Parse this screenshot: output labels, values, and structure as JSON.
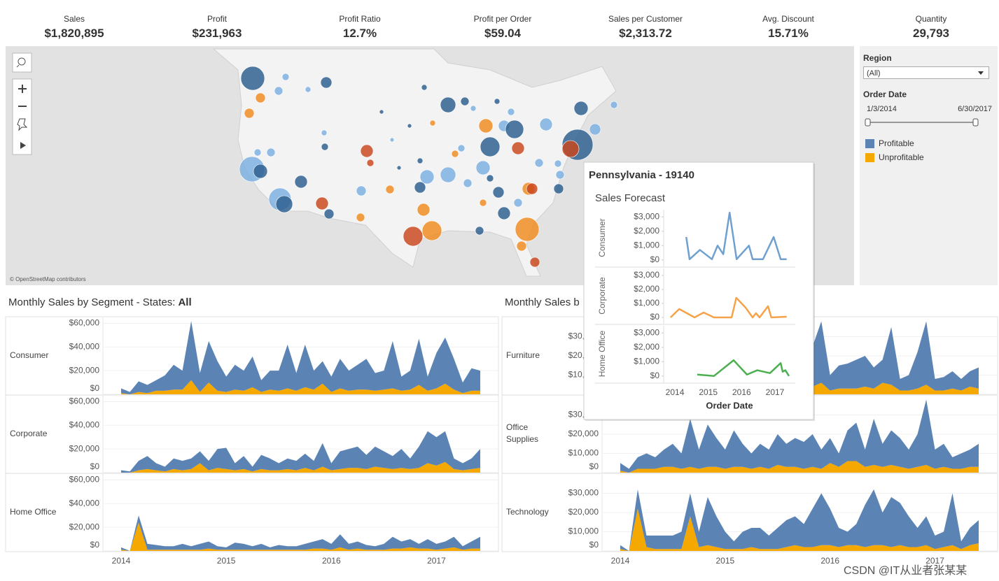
{
  "kpis": [
    {
      "label": "Sales",
      "value": "$1,820,895"
    },
    {
      "label": "Profit",
      "value": "$231,963"
    },
    {
      "label": "Profit Ratio",
      "value": "12.7%"
    },
    {
      "label": "Profit per Order",
      "value": "$59.04"
    },
    {
      "label": "Sales per Customer",
      "value": "$2,313.72"
    },
    {
      "label": "Avg. Discount",
      "value": "15.71%"
    },
    {
      "label": "Quantity",
      "value": "29,793"
    }
  ],
  "filters": {
    "region_label": "Region",
    "region_value": "(All)",
    "date_label": "Order Date",
    "date_start": "1/3/2014",
    "date_end": "6/30/2017"
  },
  "map": {
    "attribution": "© OpenStreetMap contributors"
  },
  "sections": [
    {
      "title": "Monthly Sales by Segment - States:",
      "highlight": "All"
    },
    {
      "title": "Monthly Sales b"
    }
  ],
  "tooltip": {
    "title": "Pennsylvania - 19140",
    "subtitle": "Sales Forecast"
  },
  "watermark": "CSDN @IT从业者张某某",
  "chart_data": [
    {
      "type": "area",
      "label": "Consumer",
      "ylim": [
        0,
        65000
      ],
      "grid": true,
      "yticks": [
        {
          "value": 0,
          "label": "$0"
        },
        {
          "value": 20000,
          "label": "$20,000"
        },
        {
          "value": 40000,
          "label": "$40,000"
        },
        {
          "value": 60000,
          "label": "$60,000"
        }
      ],
      "series": [
        {
          "name": "Profitable",
          "color": "#5b84b5",
          "values": [
            4000,
            2000,
            9000,
            7000,
            9000,
            13000,
            21000,
            16000,
            50000,
            16000,
            35000,
            25000,
            13000,
            21000,
            17000,
            26000,
            10000,
            16000,
            17000,
            37000,
            15000,
            36000,
            16000,
            19000,
            13000,
            25000,
            17000,
            21000,
            26000,
            15000,
            16000,
            40000,
            12000,
            16000,
            39000,
            12000,
            30000,
            39000,
            26000,
            9000,
            19000,
            17000
          ]
        },
        {
          "name": "Unprofitable",
          "color": "#f5a800",
          "values": [
            1000,
            0,
            2000,
            1000,
            3000,
            3000,
            4000,
            4000,
            12000,
            2000,
            10000,
            3000,
            2000,
            4000,
            3000,
            6000,
            2000,
            4000,
            3000,
            5000,
            3000,
            6000,
            4000,
            9000,
            2000,
            5000,
            3000,
            4000,
            4000,
            3000,
            4000,
            5000,
            3000,
            4000,
            8000,
            3000,
            5000,
            9000,
            4000,
            1000,
            3000,
            3000
          ]
        }
      ]
    },
    {
      "type": "area",
      "label": "Corporate",
      "ylim": [
        0,
        65000
      ],
      "grid": true,
      "yticks": [
        {
          "value": 0,
          "label": "$0"
        },
        {
          "value": 20000,
          "label": "$20,000"
        },
        {
          "value": 40000,
          "label": "$40,000"
        },
        {
          "value": 60000,
          "label": "$60,000"
        }
      ],
      "series": [
        {
          "name": "Profitable",
          "color": "#5b84b5",
          "values": [
            2000,
            1000,
            8000,
            11000,
            6000,
            4000,
            9000,
            8000,
            9000,
            10000,
            8000,
            16000,
            18000,
            6000,
            11000,
            4000,
            12000,
            10000,
            6000,
            9000,
            8000,
            12000,
            8000,
            20000,
            6000,
            15000,
            16000,
            18000,
            12000,
            17000,
            14000,
            11000,
            16000,
            9000,
            18000,
            27000,
            24000,
            26000,
            9000,
            6000,
            9000,
            16000
          ]
        },
        {
          "name": "Unprofitable",
          "color": "#f5a800",
          "values": [
            0,
            0,
            2000,
            3000,
            2000,
            1000,
            3000,
            2000,
            3000,
            8000,
            2000,
            4000,
            3000,
            2000,
            3000,
            1000,
            3000,
            2000,
            2000,
            3000,
            2000,
            4000,
            2000,
            5000,
            2000,
            3000,
            4000,
            4000,
            3000,
            5000,
            4000,
            3000,
            4000,
            3000,
            4000,
            8000,
            6000,
            9000,
            3000,
            2000,
            3000,
            4000
          ]
        }
      ]
    },
    {
      "type": "area",
      "label": "Home Office",
      "ylim": [
        0,
        65000
      ],
      "grid": true,
      "yticks": [
        {
          "value": 0,
          "label": "$0"
        },
        {
          "value": 20000,
          "label": "$20,000"
        },
        {
          "value": 40000,
          "label": "$40,000"
        },
        {
          "value": 60000,
          "label": "$60,000"
        }
      ],
      "categories": [
        "2014",
        null,
        null,
        null,
        null,
        null,
        null,
        null,
        null,
        null,
        null,
        null,
        "2015",
        null,
        null,
        null,
        null,
        null,
        null,
        null,
        null,
        null,
        null,
        null,
        "2016",
        null,
        null,
        null,
        null,
        null,
        null,
        null,
        null,
        null,
        null,
        null,
        "2017",
        null,
        null,
        null,
        null,
        null
      ],
      "series": [
        {
          "name": "Profitable",
          "color": "#5b84b5",
          "values": [
            2000,
            0,
            6000,
            5000,
            4000,
            3000,
            3000,
            5000,
            3000,
            5000,
            6000,
            3000,
            2000,
            6000,
            5000,
            3000,
            5000,
            2000,
            4000,
            3000,
            3000,
            5000,
            6000,
            8000,
            5000,
            11000,
            5000,
            6000,
            4000,
            3000,
            5000,
            10000,
            6000,
            7000,
            4000,
            8000,
            5000,
            6000,
            9000,
            3000,
            6000,
            10000
          ]
        },
        {
          "name": "Unprofitable",
          "color": "#f5a800",
          "values": [
            1000,
            0,
            24000,
            1000,
            1000,
            1000,
            1000,
            1000,
            1000,
            1000,
            2000,
            1000,
            1000,
            1000,
            1000,
            1000,
            1000,
            1000,
            1000,
            1000,
            1000,
            1000,
            2000,
            2000,
            1000,
            3000,
            1000,
            2000,
            1000,
            1000,
            1000,
            2000,
            2000,
            3000,
            2000,
            2000,
            1000,
            2000,
            3000,
            1000,
            2000,
            2000
          ]
        }
      ]
    },
    {
      "type": "area",
      "label": "Furniture",
      "ylim": [
        0,
        40000
      ],
      "grid": true,
      "yticks": [
        {
          "value": 0,
          "label": "$0"
        },
        {
          "value": 10000,
          "label": "$10,000"
        },
        {
          "value": 20000,
          "label": "$20,000"
        },
        {
          "value": 30000,
          "label": "$30,000"
        }
      ],
      "series": [
        {
          "name": "Profitable",
          "color": "#5b84b5",
          "values": [
            4000,
            2000,
            8000,
            7000,
            10000,
            7000,
            11000,
            8000,
            20000,
            10000,
            18000,
            15000,
            10000,
            12000,
            8000,
            14000,
            7000,
            11000,
            10000,
            19000,
            11000,
            21000,
            21000,
            32000,
            8000,
            12000,
            13000,
            15000,
            16000,
            11000,
            12000,
            30000,
            6000,
            8000,
            19000,
            33000,
            6000,
            7000,
            9000,
            6000,
            8000,
            11000
          ]
        },
        {
          "name": "Unprofitable",
          "color": "#f5a800",
          "values": [
            1000,
            0,
            2000,
            1000,
            2000,
            2000,
            3000,
            2000,
            5000,
            2000,
            4000,
            3000,
            2000,
            3000,
            2000,
            4000,
            2000,
            3000,
            2000,
            5000,
            3000,
            5000,
            4000,
            6000,
            2000,
            3000,
            3000,
            3000,
            4000,
            3000,
            6000,
            5000,
            2000,
            2000,
            3000,
            5000,
            2000,
            2000,
            3000,
            2000,
            4000,
            3000
          ]
        }
      ]
    },
    {
      "type": "area",
      "label": "Office Supplies",
      "ylim": [
        0,
        40000
      ],
      "grid": true,
      "yticks": [
        {
          "value": 0,
          "label": "$0"
        },
        {
          "value": 10000,
          "label": "$10,000"
        },
        {
          "value": 20000,
          "label": "$20,000"
        },
        {
          "value": 30000,
          "label": "$30,000"
        }
      ],
      "series": [
        {
          "name": "Profitable",
          "color": "#5b84b5",
          "values": [
            4000,
            2000,
            6000,
            8000,
            6000,
            9000,
            12000,
            8000,
            25000,
            10000,
            22000,
            15000,
            10000,
            19000,
            12000,
            8000,
            12000,
            10000,
            16000,
            12000,
            15000,
            14000,
            17000,
            10000,
            13000,
            7000,
            16000,
            20000,
            9000,
            24000,
            12000,
            18000,
            15000,
            10000,
            17000,
            34000,
            10000,
            12000,
            6000,
            8000,
            9000,
            12000
          ]
        },
        {
          "name": "Unprofitable",
          "color": "#f5a800",
          "values": [
            1000,
            0,
            2000,
            2000,
            2000,
            3000,
            3000,
            2000,
            3000,
            2000,
            3000,
            3000,
            2000,
            3000,
            3000,
            2000,
            3000,
            2000,
            4000,
            3000,
            3000,
            2000,
            3000,
            2000,
            5000,
            3000,
            6000,
            6000,
            3000,
            4000,
            3000,
            4000,
            3000,
            2000,
            3000,
            4000,
            2000,
            3000,
            2000,
            2000,
            3000,
            3000
          ]
        }
      ]
    },
    {
      "type": "area",
      "label": "Technology",
      "ylim": [
        0,
        40000
      ],
      "grid": true,
      "yticks": [
        {
          "value": 0,
          "label": "$0"
        },
        {
          "value": 10000,
          "label": "$10,000"
        },
        {
          "value": 20000,
          "label": "$20,000"
        },
        {
          "value": 30000,
          "label": "$30,000"
        }
      ],
      "categories": [
        "2014",
        null,
        null,
        null,
        null,
        null,
        null,
        null,
        null,
        null,
        null,
        null,
        "2015",
        null,
        null,
        null,
        null,
        null,
        null,
        null,
        null,
        null,
        null,
        null,
        "2016",
        null,
        null,
        null,
        null,
        null,
        null,
        null,
        null,
        null,
        null,
        null,
        "2017",
        null,
        null,
        null,
        null,
        null
      ],
      "series": [
        {
          "name": "Profitable",
          "color": "#5b84b5",
          "values": [
            2000,
            0,
            10000,
            6000,
            7000,
            7000,
            7000,
            9000,
            12000,
            8000,
            25000,
            16000,
            9000,
            4000,
            9000,
            10000,
            11000,
            7000,
            11000,
            14000,
            15000,
            12000,
            20000,
            27000,
            19000,
            10000,
            7000,
            11000,
            22000,
            29000,
            17000,
            26000,
            22000,
            16000,
            10000,
            15000,
            7000,
            8000,
            27000,
            4000,
            9000,
            12000
          ]
        },
        {
          "name": "Unprofitable",
          "color": "#f5a800",
          "values": [
            1000,
            0,
            22000,
            2000,
            1000,
            1000,
            1000,
            1000,
            18000,
            2000,
            3000,
            2000,
            1000,
            1000,
            1000,
            2000,
            1000,
            1000,
            1000,
            2000,
            3000,
            2000,
            2000,
            3000,
            3000,
            2000,
            3000,
            3000,
            2000,
            3000,
            3000,
            2000,
            3000,
            2000,
            2000,
            3000,
            1000,
            2000,
            3000,
            1000,
            3000,
            4000
          ]
        }
      ]
    },
    {
      "type": "line",
      "label": "Consumer",
      "xlim": [
        2013.8,
        2017.6
      ],
      "ylim": [
        -400,
        3500
      ],
      "color": "#6fa0cf",
      "yticks": [
        {
          "value": 0,
          "label": "$0"
        },
        {
          "value": 1000,
          "label": "$1,000"
        },
        {
          "value": 2000,
          "label": "$2,000"
        },
        {
          "value": 3000,
          "label": "$3,000"
        }
      ],
      "x": [
        2014.34,
        2014.44,
        2014.75,
        2015.11,
        2015.28,
        2015.45,
        2015.64,
        2015.85,
        2016.22,
        2016.33,
        2016.64,
        2016.96,
        2017.17,
        2017.35
      ],
      "values": [
        1600,
        50,
        700,
        50,
        1000,
        400,
        3300,
        50,
        1000,
        50,
        50,
        1600,
        50,
        50
      ]
    },
    {
      "type": "line",
      "label": "Corporate",
      "xlim": [
        2013.8,
        2017.6
      ],
      "ylim": [
        -400,
        3500
      ],
      "color": "#f5a34a",
      "yticks": [
        {
          "value": 0,
          "label": "$0"
        },
        {
          "value": 1000,
          "label": "$1,000"
        },
        {
          "value": 2000,
          "label": "$2,000"
        },
        {
          "value": 3000,
          "label": "$3,000"
        }
      ],
      "x": [
        2013.87,
        2014.13,
        2014.59,
        2014.86,
        2015.17,
        2015.7,
        2015.84,
        2016.12,
        2016.33,
        2016.43,
        2016.54,
        2016.79,
        2016.89,
        2017.35
      ],
      "values": [
        0,
        600,
        0,
        350,
        0,
        0,
        1400,
        700,
        0,
        300,
        0,
        800,
        0,
        50
      ]
    },
    {
      "type": "line",
      "label": "Home Office",
      "xlim": [
        2013.8,
        2017.6
      ],
      "ylim": [
        -400,
        3500
      ],
      "color": "#4caf50",
      "yticks": [
        {
          "value": 0,
          "label": "$0"
        },
        {
          "value": 1000,
          "label": "$1,000"
        },
        {
          "value": 2000,
          "label": "$2,000"
        },
        {
          "value": 3000,
          "label": "$3,000"
        }
      ],
      "xticks": [
        2014,
        2015,
        2016,
        2017
      ],
      "x_label": "Order Date",
      "x": [
        2014.67,
        2015.17,
        2015.76,
        2016.16,
        2016.47,
        2016.85,
        2017.17,
        2017.23,
        2017.31,
        2017.42
      ],
      "values": [
        100,
        0,
        1100,
        100,
        400,
        200,
        900,
        300,
        400,
        0
      ]
    }
  ]
}
